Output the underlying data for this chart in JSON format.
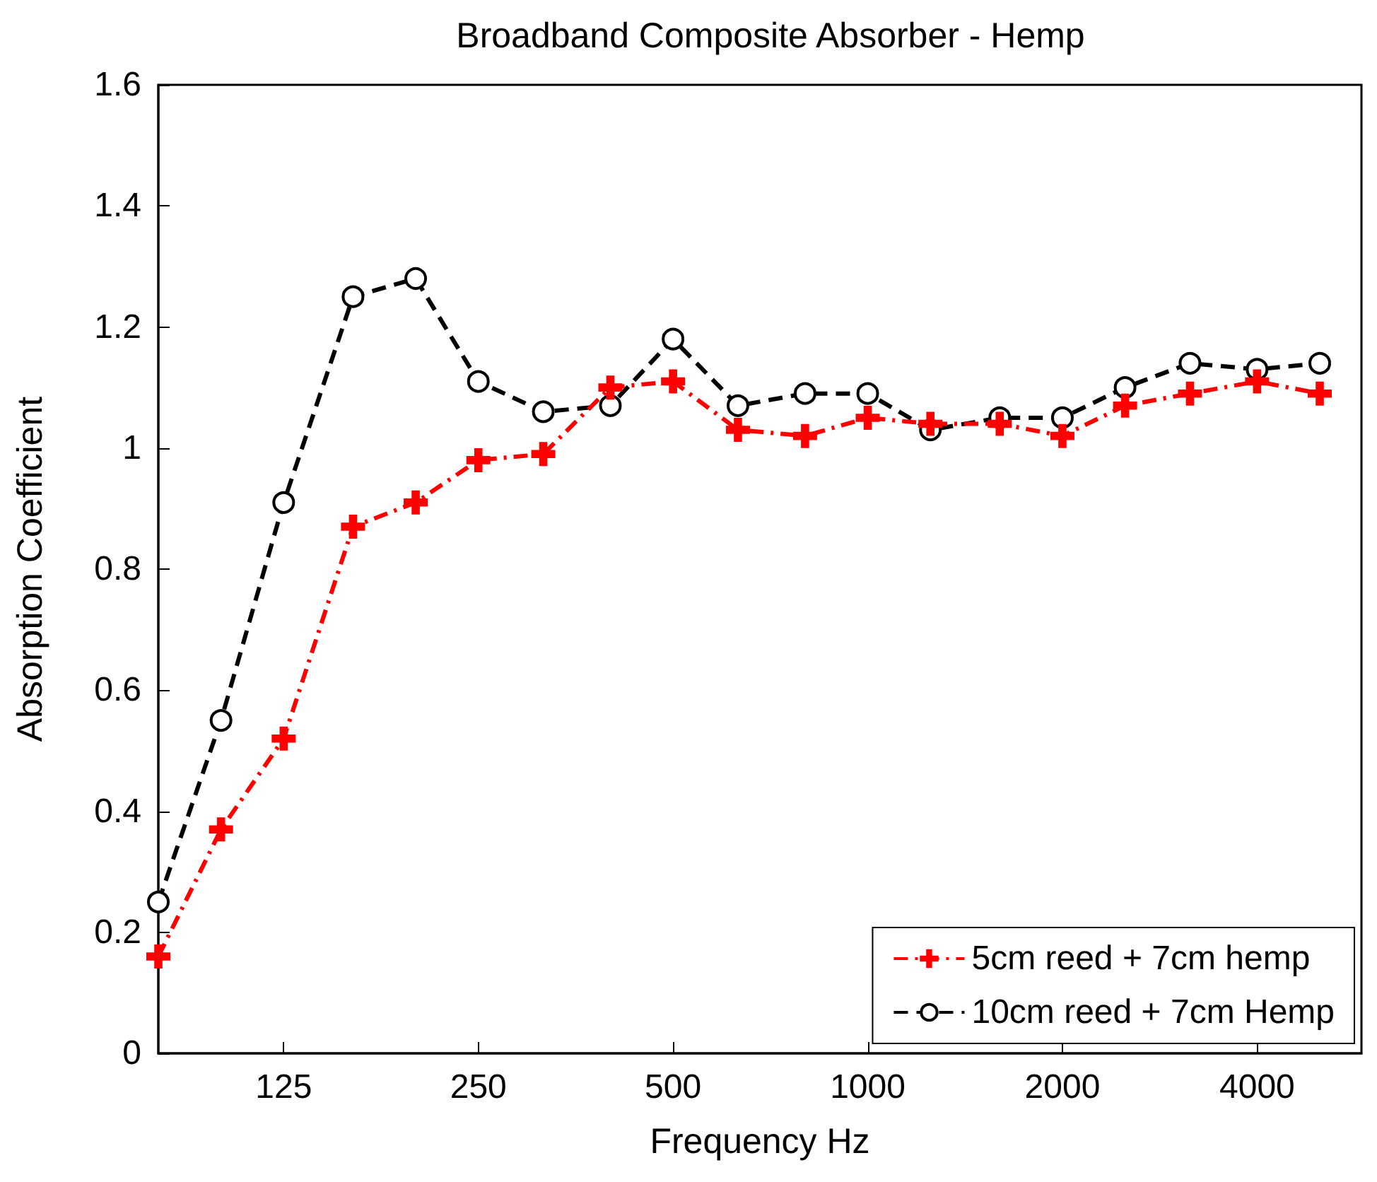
{
  "chart_data": {
    "type": "line",
    "title": "Broadband Composite Absorber - Hemp",
    "xlabel": "Frequency Hz",
    "ylabel": "Absorption Coefficient",
    "log": "x",
    "x": [
      80,
      100,
      125,
      160,
      200,
      250,
      315,
      400,
      500,
      630,
      800,
      1000,
      1250,
      1600,
      2000,
      2500,
      3150,
      4000,
      5000
    ],
    "xlim": [
      80,
      5800
    ],
    "xticks": [
      125,
      250,
      500,
      1000,
      2000,
      4000
    ],
    "ylim": [
      0,
      1.6
    ],
    "yticks": [
      0,
      0.2,
      0.4,
      0.6,
      0.8,
      1,
      1.2,
      1.4,
      1.6
    ],
    "grid": false,
    "legend": "bottom right",
    "series": [
      {
        "name": "5cm reed + 7cm hemp",
        "color": "#ff0000",
        "marker": "cross",
        "line_style": "dashdot",
        "values": [
          0.16,
          0.37,
          0.52,
          0.87,
          0.91,
          0.98,
          0.99,
          1.1,
          1.11,
          1.03,
          1.02,
          1.05,
          1.04,
          1.04,
          1.02,
          1.07,
          1.09,
          1.11,
          1.09
        ]
      },
      {
        "name": "10cm reed + 7cm Hemp",
        "color": "#000000",
        "marker": "circle",
        "line_style": "dashed",
        "values": [
          0.25,
          0.55,
          0.91,
          1.25,
          1.28,
          1.11,
          1.06,
          1.07,
          1.18,
          1.07,
          1.09,
          1.09,
          1.03,
          1.05,
          1.05,
          1.1,
          1.14,
          1.13,
          1.14
        ]
      }
    ]
  }
}
